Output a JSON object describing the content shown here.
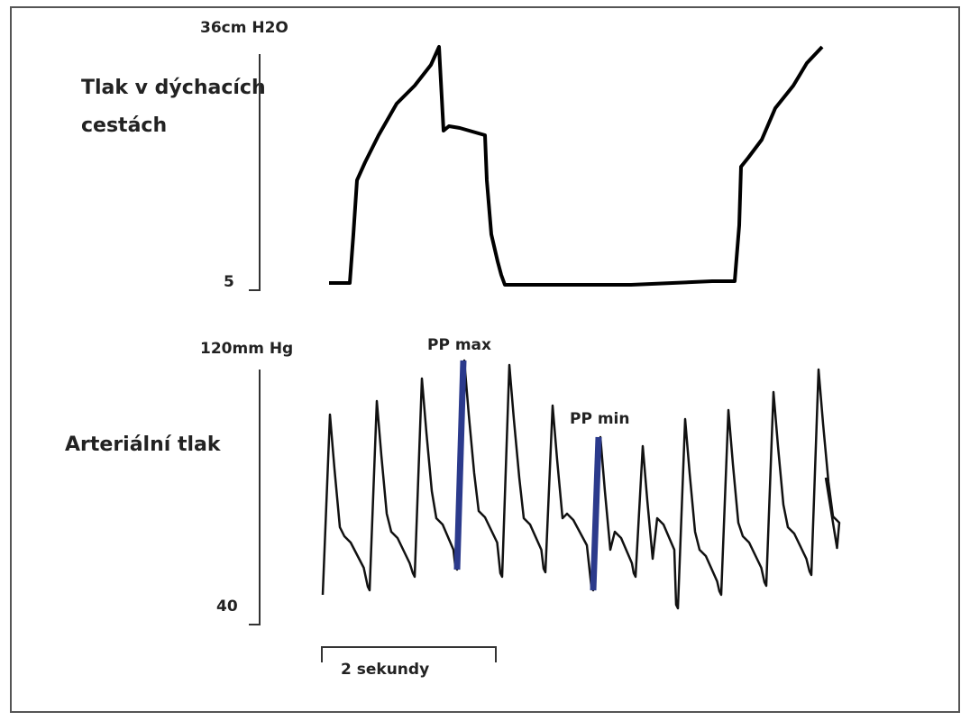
{
  "airway": {
    "scale_top": "36cm H2O",
    "title_line1": "Tlak v dýchacích",
    "title_line2": "cestách",
    "scale_bottom": "5"
  },
  "arterial": {
    "scale_top": "120mm Hg",
    "title": "Arteriální tlak",
    "scale_bottom": "40",
    "pp_max": "PP max",
    "pp_min": "PP min"
  },
  "time_bar": "2 sekundy"
}
